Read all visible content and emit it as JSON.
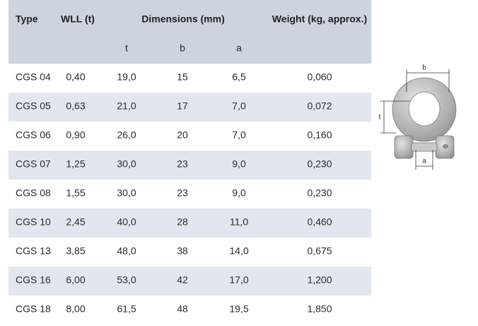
{
  "header": {
    "type": "Type",
    "wll": "WLL (t)",
    "dimensions": "Dimensions (mm)",
    "weight": "Weight (kg, approx.)",
    "sub": [
      "t",
      "b",
      "a"
    ]
  },
  "table": {
    "rows": [
      [
        "CGS 04",
        "0,40",
        "19,0",
        "15",
        "6,5",
        "0,060"
      ],
      [
        "CGS 05",
        "0,63",
        "21,0",
        "17",
        "7,0",
        "0,072"
      ],
      [
        "CGS 06",
        "0,90",
        "26,0",
        "20",
        "7,0",
        "0,160"
      ],
      [
        "CGS 07",
        "1,25",
        "30,0",
        "23",
        "9,0",
        "0,230"
      ],
      [
        "CGS 08",
        "1,55",
        "30,0",
        "23",
        "9,0",
        "0,230"
      ],
      [
        "CGS 10",
        "2,45",
        "40,0",
        "28",
        "11,0",
        "0,460"
      ],
      [
        "CGS 13",
        "3,85",
        "48,0",
        "38",
        "14,0",
        "0,675"
      ],
      [
        "CGS 16",
        "6,00",
        "53,0",
        "42",
        "17,0",
        "1,200"
      ],
      [
        "CGS 18",
        "8,00",
        "61,5",
        "48",
        "19,5",
        "1,850"
      ]
    ]
  },
  "figure": {
    "labels": {
      "b": "b",
      "t": "t",
      "a": "a"
    }
  }
}
